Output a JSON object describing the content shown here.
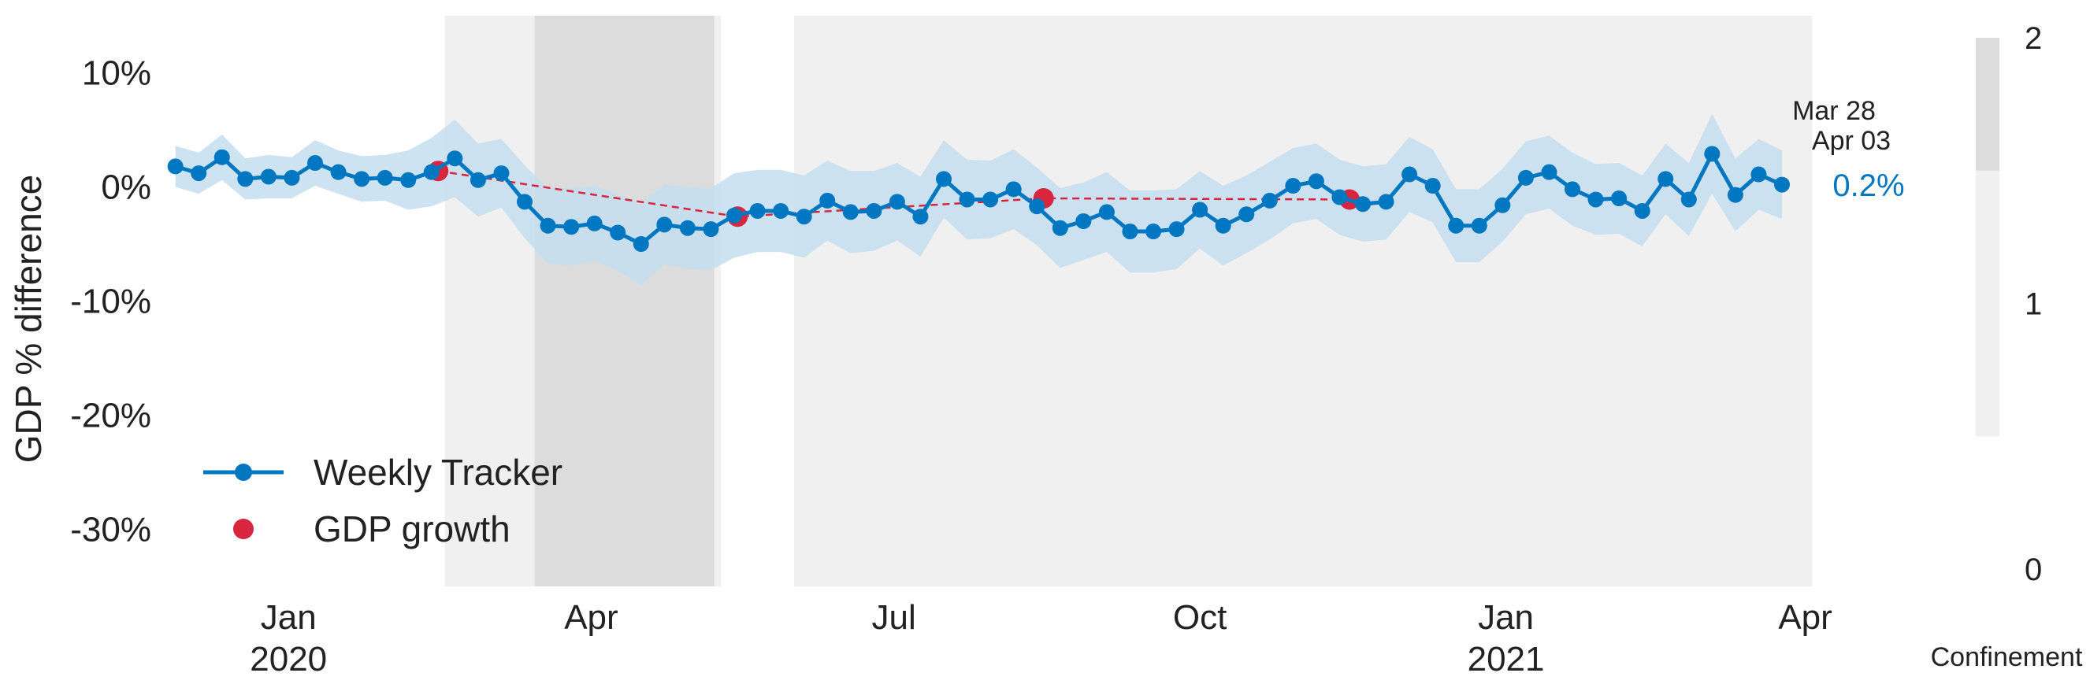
{
  "chart_data": {
    "type": "line",
    "ylabel": "GDP % difference",
    "xlabel": "",
    "ylim": [
      -35,
      15
    ],
    "xlim": [
      "2019-11-25",
      "2021-04-03"
    ],
    "grid": false,
    "legend_position": "lower-left",
    "y_ticks": [
      10,
      0,
      -10,
      -20,
      -30
    ],
    "y_tick_labels": [
      "10%",
      "0%",
      "-10%",
      "-20%",
      "-30%"
    ],
    "x_ticks": [
      {
        "date": "2020-01-01",
        "label": "Jan",
        "year": "2020"
      },
      {
        "date": "2020-04-01",
        "label": "Apr",
        "year": ""
      },
      {
        "date": "2020-07-01",
        "label": "Jul",
        "year": ""
      },
      {
        "date": "2020-10-01",
        "label": "Oct",
        "year": ""
      },
      {
        "date": "2021-01-01",
        "label": "Jan",
        "year": "2021"
      },
      {
        "date": "2021-04-01",
        "label": "Apr",
        "year": ""
      }
    ],
    "series": [
      {
        "name": "Weekly Tracker",
        "color": "#0077C0",
        "band_color": "#C6DEEF",
        "start_date": "2019-11-28",
        "step_days": 7,
        "values": [
          1.8,
          1.2,
          2.6,
          0.7,
          0.9,
          0.8,
          2.1,
          1.3,
          0.7,
          0.8,
          0.6,
          1.3,
          2.5,
          0.6,
          1.2,
          -1.3,
          -3.4,
          -3.5,
          -3.2,
          -4.0,
          -5.0,
          -3.3,
          -3.6,
          -3.7,
          -2.5,
          -2.1,
          -2.1,
          -2.6,
          -1.2,
          -2.2,
          -2.1,
          -1.3,
          -2.6,
          0.7,
          -1.1,
          -1.1,
          -0.2,
          -1.7,
          -3.6,
          -3.0,
          -2.2,
          -3.9,
          -3.9,
          -3.7,
          -2.0,
          -3.4,
          -2.4,
          -1.2,
          0.1,
          0.5,
          -0.9,
          -1.5,
          -1.3,
          1.1,
          0.1,
          -3.4,
          -3.4,
          -1.6,
          0.8,
          1.3,
          -0.2,
          -1.1,
          -1.0,
          -2.1,
          0.7,
          -1.1,
          2.9,
          -0.7,
          1.1,
          0.2
        ],
        "band_width": [
          1.8,
          1.8,
          2.0,
          1.8,
          1.9,
          1.8,
          2.0,
          1.9,
          2.0,
          2.0,
          2.6,
          3.0,
          3.4,
          3.2,
          3.0,
          3.2,
          3.3,
          3.4,
          3.3,
          3.4,
          3.6,
          3.5,
          3.6,
          3.6,
          3.7,
          3.6,
          3.6,
          3.6,
          3.5,
          3.6,
          3.5,
          3.4,
          3.5,
          3.4,
          3.5,
          3.4,
          3.5,
          3.4,
          3.5,
          3.4,
          3.5,
          3.6,
          3.6,
          3.5,
          3.4,
          3.5,
          3.4,
          3.4,
          3.3,
          3.3,
          3.3,
          3.3,
          3.3,
          3.3,
          3.2,
          3.2,
          3.2,
          3.2,
          3.2,
          3.2,
          3.2,
          3.1,
          3.1,
          3.1,
          3.1,
          3.2,
          3.5,
          3.2,
          3.1,
          3.0
        ]
      },
      {
        "name": "GDP growth",
        "color": "#D7263D",
        "style": "markers-dashed",
        "points": [
          {
            "x": "2020-02-15",
            "y": 1.4
          },
          {
            "x": "2020-05-15",
            "y": -2.6
          },
          {
            "x": "2020-08-15",
            "y": -1.0
          },
          {
            "x": "2020-11-15",
            "y": -1.1
          }
        ]
      }
    ],
    "annotations": {
      "date_line1": "Mar 28",
      "date_line2": "Apr 03",
      "latest_value": "0.2%",
      "latest_color": "#0077C0"
    },
    "confinement": {
      "label": "Confinement",
      "scale_ticks": [
        "2",
        "1",
        "0"
      ],
      "scale_max": 2,
      "level_colors": {
        "1": "#F0F0F0",
        "2": "#DCDCDC"
      },
      "periods": [
        {
          "start": "2020-02-17",
          "end": "2020-05-10",
          "level": 1
        },
        {
          "start": "2020-03-15",
          "end": "2020-05-08",
          "level": 2
        },
        {
          "start": "2020-06-01",
          "end": "2021-04-03",
          "level": 1
        }
      ]
    }
  }
}
